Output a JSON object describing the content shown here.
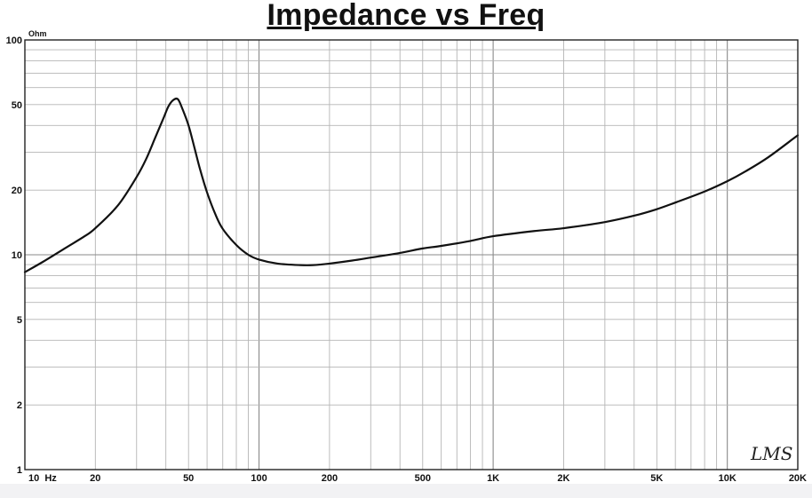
{
  "chart_data": {
    "type": "line",
    "title": "Impedance vs Freq",
    "ylabel": "Ohm",
    "xscale": "log",
    "yscale": "log",
    "xlim": [
      10,
      20000
    ],
    "ylim": [
      1,
      100
    ],
    "grid": true,
    "legend": "none",
    "x_tick_labels": [
      {
        "value": 10,
        "label": "10  Hz"
      },
      {
        "value": 20,
        "label": "20"
      },
      {
        "value": 50,
        "label": "50"
      },
      {
        "value": 100,
        "label": "100"
      },
      {
        "value": 200,
        "label": "200"
      },
      {
        "value": 500,
        "label": "500"
      },
      {
        "value": 1000,
        "label": "1K"
      },
      {
        "value": 2000,
        "label": "2K"
      },
      {
        "value": 5000,
        "label": "5K"
      },
      {
        "value": 10000,
        "label": "10K"
      },
      {
        "value": 20000,
        "label": "20K"
      }
    ],
    "y_tick_labels": [
      {
        "value": 1,
        "label": "1"
      },
      {
        "value": 2,
        "label": "2"
      },
      {
        "value": 5,
        "label": "5"
      },
      {
        "value": 10,
        "label": "10"
      },
      {
        "value": 20,
        "label": "20"
      },
      {
        "value": 50,
        "label": "50"
      },
      {
        "value": 100,
        "label": "100"
      }
    ],
    "watermark": "LMS",
    "series": [
      {
        "color": "#111111",
        "x": [
          10,
          12,
          15,
          18,
          20,
          25,
          30,
          33,
          36,
          39,
          41,
          43,
          45,
          47,
          50,
          53,
          56,
          60,
          65,
          70,
          80,
          90,
          100,
          120,
          150,
          170,
          200,
          250,
          300,
          400,
          500,
          600,
          800,
          1000,
          1500,
          2000,
          3000,
          4000,
          5000,
          6000,
          8000,
          10000,
          12000,
          15000,
          20000
        ],
        "y": [
          8.3,
          9.3,
          10.8,
          12.2,
          13.3,
          17,
          23,
          28,
          35,
          43,
          49,
          52.5,
          53,
          48,
          40,
          31.5,
          25,
          19.5,
          15.5,
          13.2,
          11.1,
          10,
          9.5,
          9.1,
          8.95,
          8.95,
          9.1,
          9.4,
          9.7,
          10.2,
          10.7,
          11,
          11.6,
          12.2,
          12.9,
          13.3,
          14.2,
          15.2,
          16.3,
          17.5,
          19.7,
          22,
          24.5,
          28.5,
          36
        ]
      }
    ]
  }
}
